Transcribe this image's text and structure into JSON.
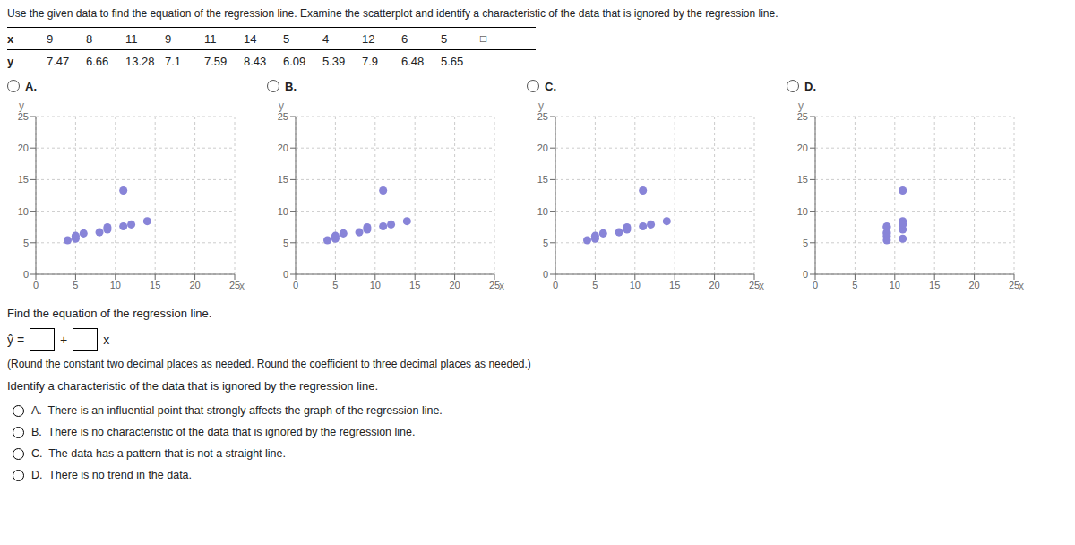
{
  "title": "Use the given data to find the equation of the regression line. Examine the scatterplot and identify a characteristic of the data that is ignored by the regression line.",
  "table": [
    [
      "x",
      "9",
      "8",
      "11",
      "9",
      "11",
      "14",
      "5",
      "4",
      "12",
      "6",
      "5"
    ],
    [
      "y",
      "7.47",
      "6.66",
      "13.28",
      "7.1",
      "7.59",
      "8.43",
      "6.09",
      "5.39",
      "7.9",
      "6.48",
      "5.65"
    ]
  ],
  "chart_data": [
    {
      "type": "scatter",
      "title": "A.",
      "x_label": "x",
      "y_label": "y",
      "x": [
        4,
        5,
        5,
        6,
        8,
        9,
        9,
        11,
        11,
        12,
        14
      ],
      "values": [
        5.39,
        5.65,
        6.09,
        6.48,
        6.66,
        7.47,
        7.1,
        13.28,
        7.59,
        7.9,
        8.43
      ],
      "xlim": [
        0,
        25
      ],
      "ylim": [
        0,
        25
      ],
      "xticks": [
        0,
        5,
        10,
        15,
        20,
        25
      ],
      "yticks": [
        0,
        5,
        10,
        15,
        20,
        25
      ],
      "grid": true,
      "color": "#8884d8"
    },
    {
      "type": "scatter",
      "title": "B.",
      "x_label": "x",
      "y_label": "y",
      "x": [
        4,
        5,
        5,
        6,
        8,
        9,
        9,
        11,
        11,
        12,
        14
      ],
      "values": [
        5.39,
        5.65,
        6.09,
        6.48,
        6.66,
        7.47,
        7.1,
        13.28,
        7.59,
        7.9,
        8.43
      ],
      "xlim": [
        0,
        25
      ],
      "ylim": [
        0,
        25
      ],
      "xticks": [
        0,
        5,
        10,
        15,
        20,
        25
      ],
      "yticks": [
        0,
        5,
        10,
        15,
        20,
        25
      ],
      "grid": true,
      "color": "#8884d8"
    },
    {
      "type": "scatter",
      "title": "C.",
      "x_label": "x",
      "y_label": "y",
      "x": [
        4,
        5,
        5,
        6,
        8,
        9,
        9,
        11,
        11,
        12,
        14
      ],
      "values": [
        5.39,
        5.65,
        6.09,
        6.48,
        6.66,
        7.47,
        7.1,
        13.28,
        7.59,
        7.9,
        8.43
      ],
      "xlim": [
        0,
        25
      ],
      "ylim": [
        0,
        25
      ],
      "xticks": [
        0,
        5,
        10,
        15,
        20,
        25
      ],
      "yticks": [
        0,
        5,
        10,
        15,
        20,
        25
      ],
      "grid": true,
      "color": "#8884d8"
    },
    {
      "type": "scatter",
      "title": "D.",
      "x_label": "x",
      "y_label": "y",
      "x": [
        9,
        9,
        11,
        11,
        9,
        11,
        9,
        9,
        11,
        9,
        11
      ],
      "values": [
        7.47,
        6.66,
        13.28,
        7.1,
        7.59,
        8.43,
        6.09,
        5.39,
        7.9,
        6.48,
        5.65
      ],
      "xlim": [
        0,
        25
      ],
      "ylim": [
        0,
        25
      ],
      "xticks": [
        0,
        5,
        10,
        15,
        20,
        25
      ],
      "yticks": [
        0,
        5,
        10,
        15,
        20,
        25
      ],
      "grid": true,
      "color": "#8884d8"
    }
  ],
  "annotations": [
    "□",
    "Find the equation of the regression line.",
    "ŷ =",
    "+",
    "x",
    "(Round the constant two decimal places as needed. Round the coefficient to three decimal places as needed.)",
    "Identify a characteristic of the data that is ignored by the regression line.",
    "A.  There is an influential point that strongly affects the graph of the regression line.",
    "B.  There is no characteristic of the data that is ignored by the regression line.",
    "C.  The data has a pattern that is not a straight line.",
    "D.  There is no trend in the data."
  ]
}
